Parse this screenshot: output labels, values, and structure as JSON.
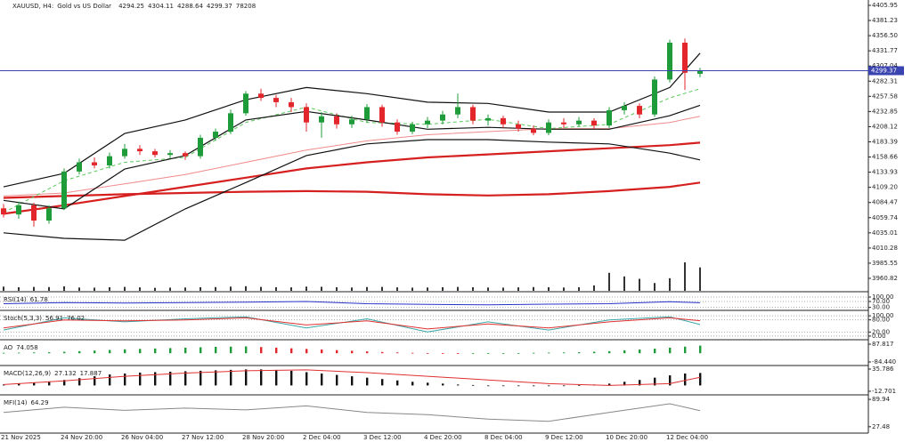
{
  "chart_data": [
    {
      "type": "candlestick",
      "title": "XAUUSD, H4:",
      "subtitle": "Gold vs US Dollar",
      "categories": [
        "21 Nov 2025",
        null,
        null,
        null,
        "24 Nov 20:00",
        null,
        null,
        null,
        "26 Nov 04:00",
        null,
        null,
        null,
        "27 Nov 12:00",
        null,
        null,
        null,
        "28 Nov 20:00",
        null,
        null,
        null,
        "2 Dec 04:00",
        null,
        null,
        null,
        "3 Dec 12:00",
        null,
        null,
        null,
        "4 Dec 20:00",
        null,
        null,
        null,
        "8 Dec 04:00",
        null,
        null,
        null,
        "9 Dec 12:00",
        null,
        null,
        null,
        "10 Dec 20:00",
        null,
        null,
        null,
        "12 Dec 04:00",
        null,
        null
      ],
      "open": [
        4075,
        4065,
        4080,
        4055,
        4075,
        4135,
        4150,
        4145,
        4160,
        4172,
        4168,
        4162,
        4165,
        4160,
        4190,
        4200,
        4230,
        4262,
        4255,
        4248,
        4240,
        4215,
        4225,
        4212,
        4220,
        4240,
        4215,
        4200,
        4212,
        4218,
        4228,
        4240,
        4218,
        4222,
        4212,
        4205,
        4198,
        4215,
        4212,
        4218,
        4210,
        4235,
        4242,
        4228,
        4285,
        4345,
        4294.25
      ],
      "high": [
        4082,
        4086,
        4084,
        4080,
        4140,
        4156,
        4158,
        4166,
        4180,
        4178,
        4172,
        4170,
        4168,
        4195,
        4205,
        4236,
        4266,
        4270,
        4260,
        4255,
        4246,
        4232,
        4230,
        4226,
        4245,
        4244,
        4220,
        4216,
        4224,
        4234,
        4262,
        4244,
        4228,
        4226,
        4218,
        4210,
        4220,
        4222,
        4224,
        4222,
        4240,
        4248,
        4246,
        4290,
        4350,
        4352,
        4304.11
      ],
      "low": [
        4060,
        4058,
        4045,
        4050,
        4072,
        4130,
        4140,
        4140,
        4156,
        4162,
        4158,
        4157,
        4154,
        4156,
        4185,
        4196,
        4226,
        4250,
        4240,
        4232,
        4200,
        4190,
        4205,
        4206,
        4215,
        4208,
        4195,
        4196,
        4206,
        4212,
        4222,
        4212,
        4210,
        4206,
        4200,
        4194,
        4194,
        4206,
        4208,
        4204,
        4206,
        4228,
        4222,
        4224,
        4280,
        4268,
        4288.64
      ],
      "close": [
        4065,
        4080,
        4055,
        4075,
        4135,
        4150,
        4145,
        4160,
        4172,
        4168,
        4162,
        4165,
        4160,
        4190,
        4200,
        4230,
        4262,
        4255,
        4248,
        4240,
        4215,
        4225,
        4212,
        4220,
        4240,
        4215,
        4200,
        4212,
        4218,
        4228,
        4240,
        4218,
        4222,
        4212,
        4205,
        4198,
        4215,
        4212,
        4218,
        4210,
        4235,
        4242,
        4228,
        4285,
        4345,
        4296,
        4299.37
      ],
      "volume": [
        14000,
        12000,
        13000,
        12500,
        15000,
        11000,
        10500,
        12000,
        13000,
        11500,
        10000,
        10500,
        11000,
        12000,
        12500,
        14000,
        15500,
        13000,
        12000,
        11500,
        14000,
        13500,
        12000,
        11000,
        12500,
        13000,
        11500,
        10500,
        11000,
        12000,
        13000,
        12000,
        11000,
        10500,
        11500,
        12500,
        12000,
        11000,
        12000,
        18000,
        60000,
        48000,
        40000,
        26000,
        42000,
        95000,
        78208
      ],
      "up_color": "#1f9c3a",
      "down_color": "#e3262b",
      "volume_color": "#333333",
      "price_line_color": "#3a44b0",
      "ylim": [
        3943.4,
        4414.65
      ],
      "yticks": [
        4405.95,
        4381.23,
        {
          "value": 4356.5,
          "label": "4356.50"
        },
        4331.77,
        4307.04,
        4282.31,
        4257.58,
        4232.85,
        4208.12,
        4183.39,
        4158.66,
        4133.93,
        {
          "value": 4109.2,
          "label": "4109.20"
        },
        4084.47,
        4059.74,
        4035.01,
        4010.28,
        3985.55,
        3960.82
      ],
      "lines": [
        {
          "color": "#d62020",
          "width": 2.2,
          "x": [
            0,
            4,
            8,
            12,
            16,
            20,
            24,
            28,
            32,
            36,
            40,
            44,
            46
          ],
          "values": [
            4092,
            4095,
            4098,
            4100,
            4102,
            4103,
            4102,
            4098,
            4096,
            4098,
            4103,
            4110,
            4117
          ]
        },
        {
          "color": "#d62020",
          "width": 2.2,
          "x": [
            0,
            4,
            8,
            12,
            16,
            20,
            24,
            28,
            32,
            36,
            40,
            44,
            46
          ],
          "values": [
            4066,
            4080,
            4095,
            4110,
            4125,
            4140,
            4150,
            4158,
            4163,
            4168,
            4173,
            4178,
            4182
          ]
        },
        {
          "color": "#f08a8a",
          "width": 1,
          "x": [
            0,
            4,
            8,
            12,
            16,
            20,
            24,
            28,
            32,
            36,
            40,
            44,
            46
          ],
          "values": [
            4095,
            4100,
            4115,
            4130,
            4150,
            4170,
            4185,
            4195,
            4200,
            4205,
            4205,
            4215,
            4225
          ]
        },
        {
          "color": "#5ac85a",
          "width": 1,
          "dash": true,
          "x": [
            0,
            4,
            8,
            12,
            16,
            20,
            24,
            28,
            32,
            36,
            40,
            44,
            46
          ],
          "values": [
            4068,
            4120,
            4150,
            4158,
            4215,
            4240,
            4215,
            4212,
            4220,
            4205,
            4212,
            4255,
            4270
          ]
        },
        {
          "color": "#111111",
          "width": 1.2,
          "x": [
            0,
            4,
            8,
            12,
            16,
            20,
            24,
            28,
            32,
            36,
            40,
            44,
            46
          ],
          "values": [
            4110,
            4132,
            4197,
            4219,
            4252,
            4272,
            4262,
            4248,
            4246,
            4232,
            4232,
            4272,
            4328
          ]
        },
        {
          "color": "#111111",
          "width": 1.2,
          "x": [
            0,
            4,
            8,
            12,
            16,
            20,
            24,
            28,
            32,
            36,
            40,
            44,
            46
          ],
          "values": [
            4088,
            4074,
            4139,
            4161,
            4219,
            4233,
            4219,
            4204,
            4207,
            4204,
            4204,
            4226,
            4243
          ]
        },
        {
          "color": "#111111",
          "width": 1.2,
          "x": [
            0,
            4,
            8,
            12,
            16,
            20,
            24,
            28,
            32,
            36,
            40,
            44,
            46
          ],
          "values": [
            4035,
            4026,
            4023,
            4074,
            4117,
            4161,
            4180,
            4187,
            4187,
            4183,
            4180,
            4165,
            4154
          ]
        }
      ]
    },
    {
      "type": "line",
      "title": "RSI(14)",
      "ylim": [
        16,
        124
      ],
      "grid": true,
      "yticks": [
        {
          "value": 100,
          "label": "100.00"
        },
        {
          "value": 70,
          "label": "70.00"
        },
        {
          "value": 30,
          "label": "30.00"
        }
      ],
      "series": [
        {
          "color": "#2733c8",
          "x": [
            0,
            4,
            8,
            12,
            16,
            20,
            24,
            28,
            32,
            36,
            40,
            44,
            46
          ],
          "values": [
            55,
            62,
            60,
            63,
            66,
            70,
            55,
            50,
            48,
            52,
            55,
            68,
            61.78
          ]
        }
      ]
    },
    {
      "type": "line",
      "title": "Stoch(5,3,3)",
      "ylim": [
        -13.6,
        118
      ],
      "grid": true,
      "yticks": [
        {
          "value": 100,
          "label": "100.00"
        },
        {
          "value": 80,
          "label": "80.00"
        },
        {
          "value": 20,
          "label": "20.00"
        },
        {
          "value": 0,
          "label": "0.00"
        }
      ],
      "series": [
        {
          "color": "#3aa6a6",
          "x": [
            0,
            4,
            8,
            12,
            16,
            20,
            24,
            28,
            32,
            36,
            40,
            44,
            46
          ],
          "values": [
            30,
            90,
            70,
            85,
            95,
            40,
            85,
            20,
            70,
            30,
            80,
            95,
            56.91
          ]
        },
        {
          "color": "#e03030",
          "x": [
            0,
            4,
            8,
            12,
            16,
            20,
            24,
            28,
            32,
            36,
            40,
            44,
            46
          ],
          "values": [
            40,
            80,
            75,
            80,
            90,
            55,
            75,
            35,
            60,
            40,
            70,
            90,
            76.02
          ]
        }
      ]
    },
    {
      "type": "bar",
      "title": "AO",
      "ylim": [
        -118.9,
        113.7
      ],
      "up_color": "#1f9c3a",
      "down_color": "#e3262b",
      "yticks": [
        87.817,
        {
          "value": -84.44,
          "label": "-84.440"
        }
      ],
      "values": [
        4,
        6,
        8,
        10,
        14,
        20,
        26,
        32,
        38,
        42,
        46,
        50,
        54,
        58,
        62,
        64,
        66,
        60,
        54,
        48,
        42,
        36,
        30,
        24,
        18,
        12,
        8,
        4,
        2,
        -2,
        -4,
        -3,
        -2,
        -1,
        2,
        4,
        6,
        8,
        10,
        14,
        20,
        28,
        36,
        44,
        54,
        64,
        74.058
      ]
    },
    {
      "type": "bar",
      "title": "MACD(12,26,9)",
      "ylim": [
        -18.6,
        39.6
      ],
      "color": "#111111",
      "yticks": [
        35.786,
        -12.701
      ],
      "values": [
        2,
        4,
        6,
        8,
        12,
        16,
        20,
        24,
        26,
        28,
        29,
        30,
        31,
        32,
        33,
        34,
        35,
        35,
        34,
        32,
        29,
        26,
        23,
        20,
        17,
        14,
        11,
        8,
        6,
        4,
        2,
        1,
        0,
        -1,
        -1,
        -1,
        -1,
        0,
        1,
        2,
        4,
        8,
        12,
        17,
        22,
        26,
        27.132
      ],
      "series": [
        {
          "color": "#e03030",
          "x": [
            0,
            4,
            8,
            12,
            16,
            20,
            24,
            28,
            32,
            36,
            40,
            44,
            46
          ],
          "values": [
            2,
            10,
            20,
            27,
            32,
            34,
            28,
            20,
            12,
            4,
            0,
            4,
            17.887
          ]
        }
      ]
    },
    {
      "type": "line",
      "title": "MFI(14)",
      "ylim": [
        12.9,
        96.2
      ],
      "yticks": [
        89.94,
        27.48
      ],
      "series": [
        {
          "color": "#888888",
          "x": [
            0,
            4,
            8,
            12,
            16,
            20,
            24,
            28,
            32,
            36,
            40,
            44,
            46
          ],
          "values": [
            60,
            72,
            65,
            70,
            66,
            75,
            60,
            55,
            45,
            40,
            60,
            80,
            64.29
          ]
        }
      ]
    }
  ]
}
